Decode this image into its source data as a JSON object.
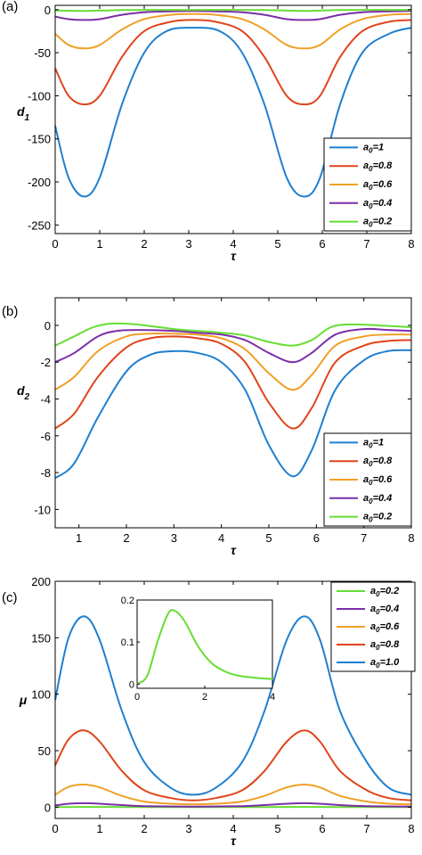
{
  "colors": {
    "a1": "#1f7fd0",
    "a08": "#e0441b",
    "a06": "#f0a026",
    "a04": "#7b2ea8",
    "a02": "#66dd33"
  },
  "chart_data": [
    {
      "type": "line",
      "panel_label": "(a)",
      "xlabel": "τ",
      "ylabel": "d",
      "ylabel_sub": "1",
      "xlim": [
        0,
        8
      ],
      "ylim": [
        -260,
        5
      ],
      "xticks": [
        "0",
        "1",
        "2",
        "3",
        "4",
        "5",
        "6",
        "7",
        "8"
      ],
      "yticks": [
        "0",
        "-50",
        "-100",
        "-150",
        "-200",
        "-250"
      ],
      "legend_position": "bottom-right",
      "series": [
        {
          "name": "a",
          "sub": "0",
          "suffix": "=1",
          "color_key": "a1",
          "x": [
            0,
            0.3,
            0.65,
            1.0,
            1.5,
            2.0,
            2.5,
            3.1,
            3.7,
            4.2,
            4.7,
            5.2,
            5.6,
            5.95,
            6.4,
            6.9,
            7.5,
            8.0
          ],
          "y": [
            -135,
            -195,
            -217,
            -195,
            -110,
            -50,
            -25,
            -21,
            -25,
            -50,
            -110,
            -195,
            -217,
            -195,
            -110,
            -50,
            -28,
            -21
          ]
        },
        {
          "name": "a",
          "sub": "0",
          "suffix": "=0.8",
          "color_key": "a08",
          "x": [
            0,
            0.3,
            0.65,
            1.0,
            1.5,
            2.0,
            2.6,
            3.1,
            3.6,
            4.2,
            4.7,
            5.2,
            5.6,
            5.95,
            6.4,
            6.9,
            7.5,
            8.0
          ],
          "y": [
            -68,
            -100,
            -110,
            -100,
            -55,
            -25,
            -14,
            -12,
            -14,
            -25,
            -55,
            -100,
            -110,
            -100,
            -55,
            -25,
            -14,
            -12
          ]
        },
        {
          "name": "a",
          "sub": "0",
          "suffix": "=0.6",
          "color_key": "a06",
          "x": [
            0,
            0.3,
            0.65,
            1.0,
            1.5,
            2.0,
            2.6,
            3.1,
            3.6,
            4.2,
            4.7,
            5.2,
            5.6,
            5.95,
            6.4,
            6.9,
            7.5,
            8.0
          ],
          "y": [
            -28,
            -41,
            -45,
            -41,
            -23,
            -11,
            -6,
            -5,
            -6,
            -11,
            -23,
            -41,
            -45,
            -41,
            -23,
            -11,
            -6,
            -5
          ]
        },
        {
          "name": "a",
          "sub": "0",
          "suffix": "=0.4",
          "color_key": "a04",
          "x": [
            0,
            0.3,
            0.65,
            1.0,
            1.5,
            2.0,
            2.6,
            3.1,
            3.6,
            4.2,
            4.7,
            5.2,
            5.6,
            5.95,
            6.4,
            6.9,
            7.5,
            8.0
          ],
          "y": [
            -8,
            -11,
            -12,
            -11,
            -6,
            -3,
            -2,
            -1.5,
            -2,
            -3,
            -6,
            -11,
            -12,
            -11,
            -6,
            -3,
            -2,
            -1.5
          ]
        },
        {
          "name": "a",
          "sub": "0",
          "suffix": "=0.2",
          "color_key": "a02",
          "x": [
            0,
            0.65,
            1.5,
            3.1,
            4.7,
            5.6,
            6.4,
            8.0
          ],
          "y": [
            -1,
            -1.5,
            -0.5,
            -0.3,
            -0.5,
            -1.5,
            -0.5,
            -0.3
          ]
        }
      ]
    },
    {
      "type": "line",
      "panel_label": "(b)",
      "xlabel": "τ",
      "ylabel": "d",
      "ylabel_sub": "2",
      "xlim": [
        0.5,
        8
      ],
      "ylim": [
        -11,
        1.5
      ],
      "xticks": [
        "1",
        "2",
        "3",
        "4",
        "5",
        "6",
        "7",
        "8"
      ],
      "xtick_values": [
        1,
        2,
        3,
        4,
        5,
        6,
        7,
        8
      ],
      "yticks": [
        "0",
        "-2",
        "-4",
        "-6",
        "-8",
        "-10"
      ],
      "ytick_values": [
        0,
        -2,
        -4,
        -6,
        -8,
        -10
      ],
      "legend_position": "bottom-right",
      "series": [
        {
          "name": "a",
          "sub": "0",
          "suffix": "=1",
          "color_key": "a1",
          "x": [
            0.5,
            0.9,
            1.4,
            2.0,
            2.5,
            3.0,
            3.5,
            4.0,
            4.5,
            5.0,
            5.5,
            5.9,
            6.4,
            7.0,
            7.5,
            8.0
          ],
          "y": [
            -8.3,
            -7.5,
            -5.0,
            -2.5,
            -1.6,
            -1.4,
            -1.5,
            -2.0,
            -3.5,
            -6.5,
            -8.2,
            -6.8,
            -3.5,
            -1.9,
            -1.4,
            -1.35
          ]
        },
        {
          "name": "a",
          "sub": "0",
          "suffix": "=0.8",
          "color_key": "a08",
          "x": [
            0.5,
            0.9,
            1.4,
            2.0,
            2.5,
            3.0,
            3.5,
            4.0,
            4.5,
            5.0,
            5.5,
            5.9,
            6.4,
            7.0,
            7.5,
            8.0
          ],
          "y": [
            -5.6,
            -4.8,
            -2.8,
            -1.2,
            -0.7,
            -0.6,
            -0.7,
            -1.0,
            -2.0,
            -4.2,
            -5.6,
            -4.5,
            -2.0,
            -1.1,
            -0.85,
            -0.8
          ]
        },
        {
          "name": "a",
          "sub": "0",
          "suffix": "=0.6",
          "color_key": "a06",
          "x": [
            0.5,
            0.9,
            1.4,
            2.0,
            2.5,
            3.0,
            3.5,
            4.0,
            4.5,
            5.0,
            5.5,
            5.9,
            6.4,
            7.0,
            7.5,
            8.0
          ],
          "y": [
            -3.5,
            -2.8,
            -1.4,
            -0.6,
            -0.45,
            -0.45,
            -0.5,
            -0.7,
            -1.3,
            -2.6,
            -3.5,
            -2.7,
            -1.1,
            -0.6,
            -0.5,
            -0.5
          ]
        },
        {
          "name": "a",
          "sub": "0",
          "suffix": "=0.4",
          "color_key": "a04",
          "x": [
            0.5,
            0.9,
            1.4,
            1.8,
            2.3,
            3.0,
            3.5,
            4.0,
            4.5,
            5.0,
            5.5,
            5.9,
            6.4,
            7.0,
            7.5,
            8.0
          ],
          "y": [
            -2.0,
            -1.5,
            -0.6,
            -0.3,
            -0.25,
            -0.3,
            -0.4,
            -0.5,
            -0.8,
            -1.5,
            -2.0,
            -1.5,
            -0.5,
            -0.2,
            -0.25,
            -0.3
          ]
        },
        {
          "name": "a",
          "sub": "0",
          "suffix": "=0.2",
          "color_key": "a02",
          "x": [
            0.5,
            0.9,
            1.3,
            1.7,
            2.2,
            3.0,
            3.5,
            4.0,
            4.5,
            5.0,
            5.5,
            5.9,
            6.3,
            6.7,
            7.3,
            8.0
          ],
          "y": [
            -1.1,
            -0.6,
            -0.1,
            0.1,
            0.05,
            -0.2,
            -0.3,
            -0.4,
            -0.55,
            -0.9,
            -1.1,
            -0.8,
            -0.1,
            0.05,
            0.0,
            -0.1
          ]
        }
      ]
    },
    {
      "type": "line",
      "panel_label": "(c)",
      "xlabel": "τ",
      "ylabel": "μ",
      "xlim": [
        0,
        8
      ],
      "ylim": [
        -10,
        200
      ],
      "xticks": [
        "0",
        "1",
        "2",
        "3",
        "4",
        "5",
        "6",
        "7",
        "8"
      ],
      "yticks": [
        "0",
        "50",
        "100",
        "150",
        "200"
      ],
      "ytick_values": [
        0,
        50,
        100,
        150,
        200
      ],
      "legend_position": "top-right",
      "series": [
        {
          "name": "a",
          "sub": "0",
          "suffix": "=0.2",
          "color_key": "a02",
          "x": [
            0,
            0.65,
            1.5,
            3.1,
            4.7,
            5.6,
            6.4,
            8.0
          ],
          "y": [
            0.1,
            0.2,
            0.1,
            0.05,
            0.1,
            0.2,
            0.1,
            0.05
          ]
        },
        {
          "name": "a",
          "sub": "0",
          "suffix": "=0.4",
          "color_key": "a04",
          "x": [
            0,
            0.3,
            0.65,
            1.0,
            1.5,
            2.0,
            3.1,
            4.2,
            4.7,
            5.2,
            5.6,
            5.95,
            6.4,
            7.0,
            8.0
          ],
          "y": [
            1.5,
            3,
            3.5,
            3,
            1.8,
            0.9,
            0.5,
            0.9,
            1.8,
            3,
            3.5,
            3,
            1.8,
            0.9,
            0.5
          ]
        },
        {
          "name": "a",
          "sub": "0",
          "suffix": "=0.6",
          "color_key": "a06",
          "x": [
            0,
            0.3,
            0.65,
            1.0,
            1.5,
            2.0,
            2.6,
            3.1,
            3.6,
            4.2,
            4.7,
            5.2,
            5.6,
            5.95,
            6.4,
            7.0,
            7.5,
            8.0
          ],
          "y": [
            11,
            18,
            20,
            17.5,
            10,
            5,
            3,
            2.5,
            3,
            5,
            10,
            17.5,
            20,
            17.5,
            10,
            5,
            3,
            2.5
          ]
        },
        {
          "name": "a",
          "sub": "0",
          "suffix": "=0.8",
          "color_key": "a08",
          "x": [
            0,
            0.3,
            0.65,
            1.0,
            1.5,
            2.0,
            2.6,
            3.1,
            3.6,
            4.2,
            4.7,
            5.2,
            5.6,
            5.95,
            6.4,
            7.0,
            7.5,
            8.0
          ],
          "y": [
            37,
            60,
            68,
            58,
            32,
            15,
            8,
            6,
            8,
            15,
            32,
            58,
            68,
            58,
            32,
            15,
            8,
            6
          ]
        },
        {
          "name": "a",
          "sub": "0",
          "suffix": "=1.0",
          "color_key": "a1",
          "x": [
            0,
            0.3,
            0.65,
            1.0,
            1.5,
            2.0,
            2.6,
            3.1,
            3.6,
            4.2,
            4.7,
            5.2,
            5.6,
            5.95,
            6.4,
            7.0,
            7.5,
            8.0
          ],
          "y": [
            95,
            150,
            169,
            148,
            85,
            40,
            17,
            11,
            17,
            40,
            85,
            148,
            169,
            148,
            85,
            40,
            17,
            11
          ]
        }
      ],
      "inset": {
        "type": "line",
        "xlim": [
          0,
          4
        ],
        "ylim": [
          -0.01,
          0.2
        ],
        "xticks": [
          "0",
          "2",
          "4"
        ],
        "xtick_values": [
          0,
          2,
          4
        ],
        "yticks": [
          "0",
          "0.1",
          "0.2"
        ],
        "ytick_values": [
          0,
          0.1,
          0.2
        ],
        "series": [
          {
            "color_key": "a02",
            "x": [
              0,
              0.3,
              0.6,
              0.9,
              1.1,
              1.4,
              1.8,
              2.2,
              2.6,
              3.0,
              3.5,
              4.0
            ],
            "y": [
              0,
              0.02,
              0.1,
              0.165,
              0.175,
              0.15,
              0.09,
              0.05,
              0.03,
              0.02,
              0.015,
              0.012
            ]
          }
        ]
      }
    }
  ]
}
